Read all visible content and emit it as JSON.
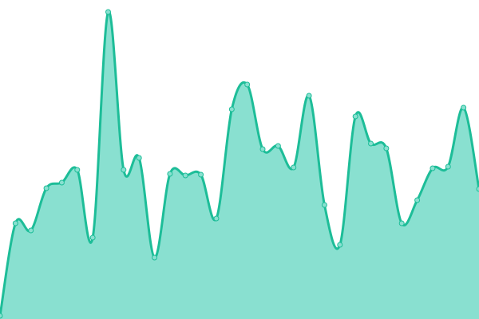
{
  "chart_data": {
    "type": "area",
    "title": "",
    "xlabel": "",
    "ylabel": "",
    "x": [
      0,
      1,
      2,
      3,
      4,
      5,
      6,
      7,
      8,
      9,
      10,
      11,
      12,
      13,
      14,
      15,
      16,
      17,
      18,
      19,
      20,
      21,
      22,
      23,
      24,
      25,
      26,
      27,
      28,
      29,
      30,
      31
    ],
    "values": [
      4,
      120,
      111,
      164,
      171,
      187,
      102,
      385,
      187,
      202,
      77,
      182,
      180,
      181,
      126,
      263,
      294,
      213,
      217,
      190,
      280,
      143,
      93,
      254,
      220,
      214,
      120,
      149,
      189,
      191,
      265,
      163
    ],
    "ylim": [
      0,
      400
    ],
    "grid": false,
    "axes_visible": false,
    "curve": "smooth",
    "colors": {
      "line": "#1dbd98",
      "fill": "#89e0d0",
      "point_fill": "#89e0d0",
      "point_stroke": "#1dbd98"
    }
  }
}
